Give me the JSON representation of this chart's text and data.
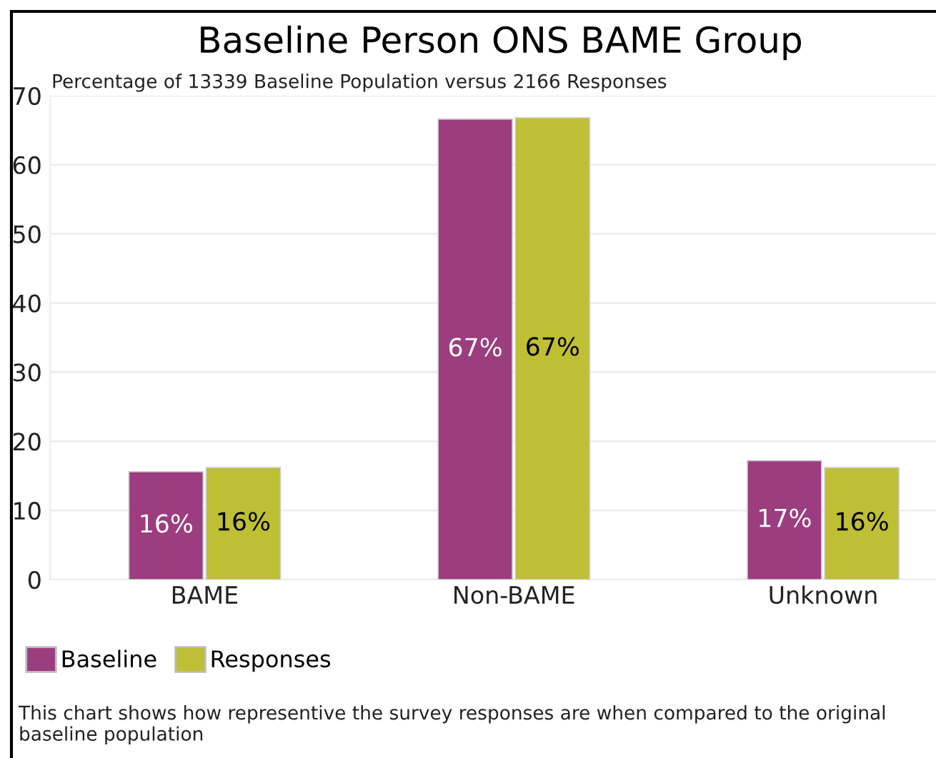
{
  "chart_data": {
    "type": "bar",
    "title": "Baseline Person ONS BAME Group",
    "subtitle": "Percentage of 13339 Baseline Population versus 2166 Responses",
    "categories": [
      "BAME",
      "Non-BAME",
      "Unknown"
    ],
    "series": [
      {
        "name": "Baseline",
        "color": "#9b3d7e",
        "values": [
          15.6,
          66.6,
          17.2
        ],
        "value_labels": [
          "16%",
          "67%",
          "17%"
        ]
      },
      {
        "name": "Responses",
        "color": "#bfbf35",
        "values": [
          16.2,
          66.8,
          16.2
        ],
        "value_labels": [
          "16%",
          "67%",
          "16%"
        ]
      }
    ],
    "ylim": [
      0,
      70
    ],
    "yticks": [
      0,
      10,
      20,
      30,
      40,
      50,
      60,
      70
    ],
    "grid": "y",
    "legend": "bottom",
    "annotations": [
      "This chart shows how representive the survey responses are when compared to the original baseline population"
    ]
  }
}
